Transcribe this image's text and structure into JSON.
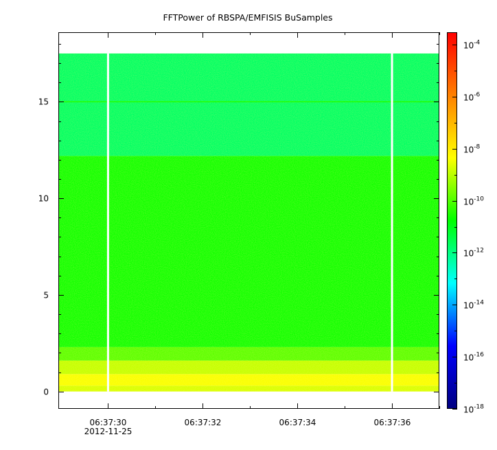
{
  "chart_data": {
    "type": "heatmap",
    "title": "FFTPower of RBSPA/EMFISIS  BuSamples",
    "xlabel": "",
    "ylabel": "",
    "x_ticks": [
      {
        "label": "06:37:30",
        "sublabel": "2012-11-25",
        "t": 30
      },
      {
        "label": "06:37:32",
        "sublabel": "",
        "t": 32
      },
      {
        "label": "06:37:34",
        "sublabel": "",
        "t": 34
      },
      {
        "label": "06:37:36",
        "sublabel": "",
        "t": 36
      }
    ],
    "x_minor_ticks": [
      31,
      33,
      35,
      37
    ],
    "xlim_seconds": [
      28.95,
      37.0
    ],
    "y_ticks": [
      0,
      5,
      10,
      15
    ],
    "ylim": [
      -0.9,
      18.6
    ],
    "data_extent": {
      "t": [
        28.95,
        37.0
      ],
      "y": [
        0.0,
        17.5
      ]
    },
    "gaps_seconds": [
      30.0,
      36.0
    ],
    "bands": [
      {
        "y": [
          0.0,
          0.3
        ],
        "log_power": -8.7
      },
      {
        "y": [
          0.3,
          0.9
        ],
        "log_power": -8.4
      },
      {
        "y": [
          0.9,
          1.6
        ],
        "log_power": -8.9
      },
      {
        "y": [
          1.6,
          2.3
        ],
        "log_power": -9.9
      },
      {
        "y": [
          2.3,
          12.2
        ],
        "log_power": -10.6
      },
      {
        "y": [
          12.2,
          17.5
        ],
        "log_power": -11.7
      }
    ],
    "lines": [
      {
        "y": 15.0,
        "log_power": -10.4
      }
    ],
    "colorbar": {
      "scale": "log",
      "range": [
        1e-18,
        0.0003
      ],
      "ticks": [
        {
          "base": "10",
          "exp": "-4",
          "value": -4
        },
        {
          "base": "10",
          "exp": "-6",
          "value": -6
        },
        {
          "base": "10",
          "exp": "-8",
          "value": -8
        },
        {
          "base": "10",
          "exp": "-10",
          "value": -10
        },
        {
          "base": "10",
          "exp": "-12",
          "value": -12
        },
        {
          "base": "10",
          "exp": "-14",
          "value": -14
        },
        {
          "base": "10",
          "exp": "-16",
          "value": -16
        },
        {
          "base": "10",
          "exp": "-18",
          "value": -18
        }
      ],
      "colormap": [
        "#000080",
        "#0000ff",
        "#00ffff",
        "#00ff00",
        "#ffff00",
        "#ff8000",
        "#ff0000"
      ]
    }
  }
}
